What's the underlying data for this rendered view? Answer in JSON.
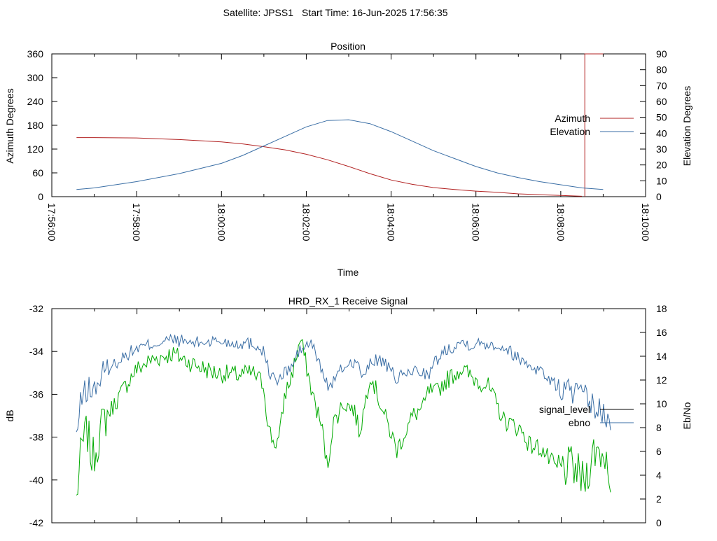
{
  "header": {
    "satellite_text": "Satellite: JPSS1",
    "start_time_text": "Start Time: 16-Jun-2025 17:56:35"
  },
  "chart_data": [
    {
      "type": "line",
      "title": "Position",
      "xlabel": "Time",
      "ylabel": "Azimuth Degrees",
      "y2label": "Elevation Degrees",
      "xlim": [
        "17:56:00",
        "18:10:00"
      ],
      "ylim": [
        0,
        360
      ],
      "y2lim": [
        0,
        90
      ],
      "x_ticks": [
        "17:56:00",
        "17:58:00",
        "18:00:00",
        "18:02:00",
        "18:04:00",
        "18:06:00",
        "18:08:00",
        "18:10:00"
      ],
      "y_ticks": [
        "0",
        "60",
        "120",
        "180",
        "240",
        "300",
        "360"
      ],
      "y2_ticks": [
        "0",
        "10",
        "20",
        "30",
        "40",
        "50",
        "60",
        "70",
        "80",
        "90"
      ],
      "legend_position": "right",
      "grid": false,
      "series": [
        {
          "name": "Azimuth",
          "axis": "y",
          "color": "#b22222",
          "x": [
            "17:56:35",
            "17:57:00",
            "17:58:00",
            "17:59:00",
            "18:00:00",
            "18:00:30",
            "18:01:00",
            "18:01:30",
            "18:02:00",
            "18:02:30",
            "18:03:00",
            "18:03:30",
            "18:04:00",
            "18:04:30",
            "18:05:00",
            "18:05:30",
            "18:06:00",
            "18:06:30",
            "18:07:00",
            "18:07:30",
            "18:08:00",
            "18:08:30"
          ],
          "values": [
            149,
            149,
            148,
            144,
            138,
            133,
            126,
            118,
            107,
            93,
            76,
            58,
            42,
            31,
            23,
            18,
            14,
            11,
            7,
            5,
            3,
            1
          ],
          "wrap": {
            "x": [
              "18:08:34",
              "18:08:34",
              "18:09:00"
            ],
            "values": [
              0,
              360,
              360
            ]
          }
        },
        {
          "name": "Elevation",
          "axis": "y2",
          "color": "#3a6ea5",
          "x": [
            "17:56:35",
            "17:57:00",
            "17:58:00",
            "17:59:00",
            "18:00:00",
            "18:00:30",
            "18:01:00",
            "18:01:30",
            "18:02:00",
            "18:02:30",
            "18:03:00",
            "18:03:30",
            "18:04:00",
            "18:04:30",
            "18:05:00",
            "18:05:30",
            "18:06:00",
            "18:06:30",
            "18:07:00",
            "18:07:30",
            "18:08:00",
            "18:08:30",
            "18:09:00"
          ],
          "values": [
            4.5,
            5.5,
            9.5,
            14.5,
            21,
            26,
            32,
            38,
            44,
            48,
            48.5,
            46,
            41,
            35,
            29,
            24,
            19,
            15,
            12,
            9.5,
            7.5,
            5.5,
            4.5
          ]
        }
      ]
    },
    {
      "type": "line",
      "title": "HRD_RX_1 Receive Signal",
      "ylabel": "dB",
      "y2label": "Eb/No",
      "ylim": [
        -42,
        -32
      ],
      "y2lim": [
        0,
        18
      ],
      "y_ticks": [
        "-32",
        "-34",
        "-36",
        "-38",
        "-40",
        "-42"
      ],
      "y2_ticks": [
        "0",
        "2",
        "4",
        "6",
        "8",
        "10",
        "12",
        "14",
        "16",
        "18"
      ],
      "legend_position": "right",
      "grid": false,
      "t_range": [
        0,
        1
      ],
      "series": [
        {
          "name": "signal_level",
          "legend_color": "#000000",
          "axis": "y",
          "color": "#00aa00",
          "t": [
            0.0,
            0.01,
            0.02,
            0.03,
            0.05,
            0.08,
            0.11,
            0.14,
            0.18,
            0.22,
            0.26,
            0.3,
            0.33,
            0.35,
            0.36,
            0.37,
            0.38,
            0.39,
            0.4,
            0.42,
            0.44,
            0.46,
            0.47,
            0.48,
            0.5,
            0.52,
            0.53,
            0.54,
            0.55,
            0.57,
            0.6,
            0.63,
            0.65,
            0.66,
            0.67,
            0.69,
            0.72,
            0.74,
            0.77,
            0.8,
            0.83,
            0.85,
            0.87,
            0.88,
            0.9,
            0.93,
            0.95,
            0.97,
            0.99,
            1.0
          ],
          "values": [
            -40.9,
            -38.5,
            -37.7,
            -39.1,
            -37.3,
            -36.1,
            -34.9,
            -34.4,
            -34.1,
            -34.6,
            -35.0,
            -35.1,
            -35.0,
            -35.5,
            -37.6,
            -38.3,
            -38.1,
            -36.0,
            -35.4,
            -33.4,
            -35.8,
            -37.6,
            -39.5,
            -37.4,
            -36.4,
            -36.7,
            -37.8,
            -36.5,
            -35.0,
            -36.5,
            -38.6,
            -37.0,
            -36.6,
            -35.8,
            -36.0,
            -35.4,
            -34.8,
            -35.2,
            -35.6,
            -37.2,
            -37.6,
            -38.4,
            -38.5,
            -38.9,
            -39.5,
            -39.4,
            -40.1,
            -38.6,
            -38.8,
            -39.8
          ]
        },
        {
          "name": "ebno",
          "legend_color": "#3a6ea5",
          "axis": "y2",
          "color": "#3a6ea5",
          "t": [
            0.0,
            0.01,
            0.02,
            0.03,
            0.05,
            0.08,
            0.11,
            0.14,
            0.18,
            0.22,
            0.26,
            0.3,
            0.33,
            0.35,
            0.36,
            0.37,
            0.38,
            0.39,
            0.4,
            0.42,
            0.44,
            0.46,
            0.47,
            0.48,
            0.5,
            0.52,
            0.53,
            0.54,
            0.55,
            0.57,
            0.6,
            0.63,
            0.65,
            0.66,
            0.67,
            0.69,
            0.72,
            0.74,
            0.77,
            0.8,
            0.83,
            0.85,
            0.87,
            0.88,
            0.9,
            0.93,
            0.95,
            0.97,
            0.99,
            1.0
          ],
          "values": [
            7.2,
            10.5,
            11.3,
            11.0,
            12.5,
            13.7,
            14.6,
            15.0,
            15.4,
            15.1,
            15.3,
            15.1,
            15.1,
            14.5,
            12.8,
            12.1,
            11.9,
            12.7,
            12.9,
            14.6,
            15.1,
            12.8,
            11.5,
            11.8,
            13.1,
            13.6,
            13.0,
            12.0,
            13.6,
            13.7,
            12.1,
            12.8,
            12.7,
            12.3,
            13.4,
            14.5,
            15.2,
            15.0,
            15.1,
            14.8,
            13.8,
            13.2,
            12.8,
            12.3,
            11.4,
            11.0,
            10.5,
            9.7,
            8.9,
            8.1
          ]
        }
      ]
    }
  ]
}
